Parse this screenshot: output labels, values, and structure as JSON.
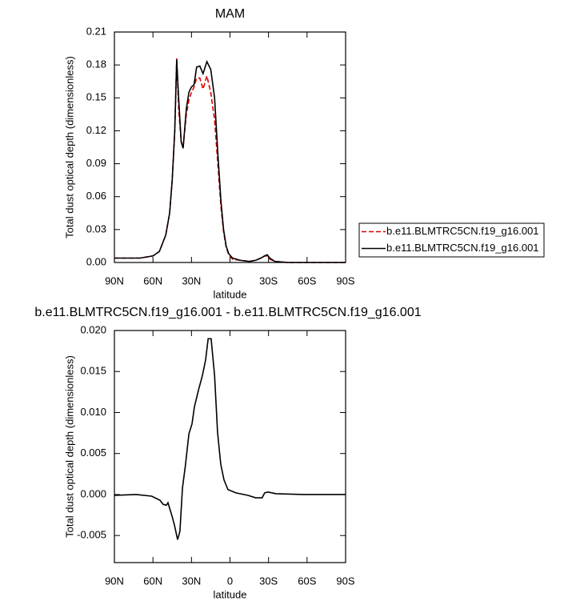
{
  "chart_data": [
    {
      "type": "line",
      "title": "MAM",
      "xlabel": "latitude",
      "ylabel": "Total dust optical depth (dimensionless)",
      "x": [
        90,
        80,
        70,
        60,
        55,
        50,
        47,
        45,
        43,
        41.5,
        40,
        38,
        36.5,
        34,
        32,
        30,
        28,
        26,
        23.5,
        21,
        18,
        15,
        12,
        9.5,
        7,
        5,
        3,
        1,
        -2,
        -8,
        -15,
        -20,
        -24,
        -27,
        -29,
        -31,
        -35,
        -45,
        -60,
        -75,
        -90
      ],
      "series": [
        {
          "name": "b.e11.BLMTRC5CN.f19_g16.001",
          "color": "#e00000",
          "linestyle": "dashed",
          "values": [
            0.004,
            0.004,
            0.004,
            0.006,
            0.01,
            0.025,
            0.045,
            0.075,
            0.12,
            0.186,
            0.14,
            0.11,
            0.105,
            0.135,
            0.148,
            0.155,
            0.16,
            0.168,
            0.168,
            0.158,
            0.17,
            0.155,
            0.13,
            0.09,
            0.05,
            0.028,
            0.014,
            0.007,
            0.003,
            0.002,
            0.001,
            0.002,
            0.004,
            0.006,
            0.006,
            0.003,
            0.001,
            0,
            0,
            0,
            0
          ]
        },
        {
          "name": "b.e11.BLMTRC5CN.f19_g16.001",
          "color": "#000000",
          "linestyle": "solid",
          "values": [
            0.004,
            0.004,
            0.004,
            0.006,
            0.01,
            0.025,
            0.045,
            0.075,
            0.12,
            0.185,
            0.15,
            0.11,
            0.104,
            0.14,
            0.155,
            0.16,
            0.162,
            0.178,
            0.179,
            0.172,
            0.183,
            0.176,
            0.15,
            0.1,
            0.055,
            0.03,
            0.015,
            0.008,
            0.004,
            0.002,
            0.001,
            0.002,
            0.004,
            0.006,
            0.007,
            0.004,
            0.001,
            0,
            0,
            0,
            0
          ]
        }
      ],
      "xlim": [
        90,
        -90
      ],
      "xticks": [
        {
          "value": 90,
          "label": "90N"
        },
        {
          "value": 60,
          "label": "60N"
        },
        {
          "value": 30,
          "label": "30N"
        },
        0,
        {
          "value": -30,
          "label": "30S"
        },
        {
          "value": -60,
          "label": "60S"
        },
        {
          "value": -90,
          "label": "90S"
        }
      ],
      "ylim": [
        0,
        0.21
      ],
      "yticks": [
        {
          "value": 0,
          "label": "0.00"
        },
        0.03,
        0.06,
        0.09,
        0.12,
        0.15,
        0.18,
        0.21
      ],
      "legend": "right"
    },
    {
      "type": "line",
      "title": "b.e11.BLMTRC5CN.f19_g16.001 - b.e11.BLMTRC5CN.f19_g16.001",
      "xlabel": "latitude",
      "ylabel": "Total dust optical depth (dimensionless)",
      "x": [
        90,
        73,
        61,
        54.5,
        52,
        49.5,
        48.3,
        45.2,
        43.3,
        40.8,
        39,
        37,
        34.6,
        32,
        29.6,
        27.7,
        24.6,
        21.5,
        19,
        17,
        14.7,
        12,
        9.7,
        7.2,
        4.7,
        1.6,
        -4.6,
        -14,
        -20,
        -25,
        -27,
        -29.5,
        -35.8,
        -57.6,
        -90
      ],
      "series": [
        {
          "color": "#000000",
          "linestyle": "solid",
          "values": [
            -0.0001,
            0,
            -0.0002,
            -0.0007,
            -0.0012,
            -0.0013,
            -0.001,
            -0.0026,
            -0.0037,
            -0.0055,
            -0.0045,
            0.0008,
            0.0037,
            0.0074,
            0.0086,
            0.0107,
            0.0127,
            0.0145,
            0.0164,
            0.019,
            0.019,
            0.0145,
            0.0076,
            0.0037,
            0.0018,
            0.0006,
            0.0002,
            -0.0001,
            -0.0004,
            -0.0004,
            0.0002,
            0.0003,
            0.0001,
            0,
            0
          ]
        }
      ],
      "xlim": [
        90,
        -90
      ],
      "xticks": [
        {
          "value": 90,
          "label": "90N"
        },
        {
          "value": 60,
          "label": "60N"
        },
        {
          "value": 30,
          "label": "30N"
        },
        0,
        {
          "value": -30,
          "label": "30S"
        },
        {
          "value": -60,
          "label": "60S"
        },
        {
          "value": -90,
          "label": "90S"
        }
      ],
      "ylim": [
        -0.0083,
        0.02
      ],
      "yticks": [
        -0.005,
        {
          "value": 0,
          "label": "0.000"
        },
        0.005,
        {
          "value": 0.01,
          "label": "0.010"
        },
        0.015,
        {
          "value": 0.02,
          "label": "0.020"
        }
      ]
    }
  ]
}
